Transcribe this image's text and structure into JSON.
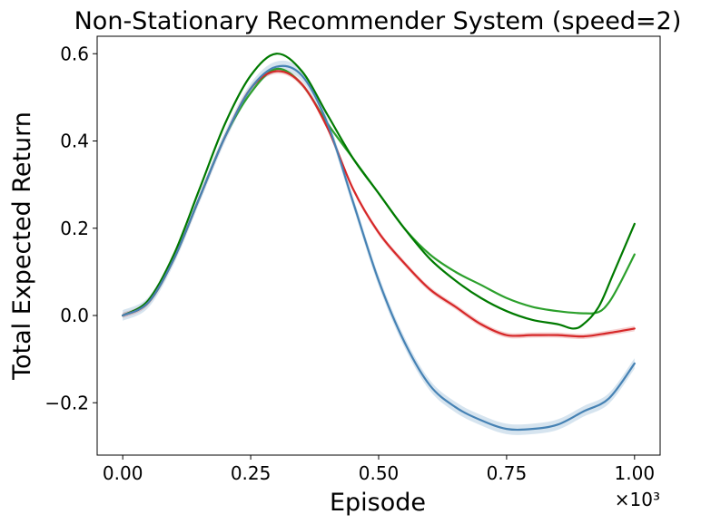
{
  "chart_data": {
    "type": "line",
    "title": "Non-Stationary Recommender System (speed=2)",
    "xlabel": "Episode",
    "ylabel": "Total Expected Return",
    "x_multiplier_label": "×10³",
    "xlim": [
      -0.05,
      1.05
    ],
    "ylim": [
      -0.32,
      0.64
    ],
    "x_ticks": [
      0.0,
      0.25,
      0.5,
      0.75,
      1.0
    ],
    "x_tick_labels": [
      "0.00",
      "0.25",
      "0.50",
      "0.75",
      "1.00"
    ],
    "y_ticks": [
      -0.2,
      0.0,
      0.2,
      0.4,
      0.6
    ],
    "y_tick_labels": [
      "−0.2",
      "0.0",
      "0.2",
      "0.4",
      "0.6"
    ],
    "grid": false,
    "legend": "none",
    "series": [
      {
        "color": "#2ca02c",
        "x": [
          0.0,
          0.05,
          0.1,
          0.15,
          0.2,
          0.25,
          0.3,
          0.35,
          0.4,
          0.45,
          0.5,
          0.55,
          0.6,
          0.65,
          0.7,
          0.75,
          0.8,
          0.85,
          0.9,
          0.93,
          0.95,
          0.97,
          1.0
        ],
        "y": [
          0.0,
          0.03,
          0.13,
          0.27,
          0.41,
          0.51,
          0.565,
          0.53,
          0.44,
          0.36,
          0.28,
          0.2,
          0.14,
          0.1,
          0.07,
          0.04,
          0.02,
          0.01,
          0.005,
          0.008,
          0.03,
          0.07,
          0.14
        ],
        "band": 0.0
      },
      {
        "color": "#007a00",
        "x": [
          0.0,
          0.05,
          0.1,
          0.15,
          0.2,
          0.25,
          0.3,
          0.35,
          0.4,
          0.45,
          0.5,
          0.55,
          0.6,
          0.65,
          0.7,
          0.75,
          0.8,
          0.85,
          0.88,
          0.9,
          0.93,
          0.96,
          1.0
        ],
        "y": [
          0.0,
          0.035,
          0.14,
          0.29,
          0.44,
          0.55,
          0.6,
          0.56,
          0.46,
          0.36,
          0.28,
          0.2,
          0.13,
          0.08,
          0.04,
          0.01,
          -0.01,
          -0.02,
          -0.03,
          -0.02,
          0.02,
          0.1,
          0.21
        ],
        "band": 0.0
      },
      {
        "color": "#d62728",
        "x": [
          0.0,
          0.05,
          0.1,
          0.15,
          0.2,
          0.25,
          0.3,
          0.35,
          0.4,
          0.45,
          0.5,
          0.55,
          0.6,
          0.65,
          0.7,
          0.75,
          0.8,
          0.85,
          0.9,
          0.95,
          1.0
        ],
        "y": [
          0.0,
          0.03,
          0.13,
          0.27,
          0.41,
          0.52,
          0.56,
          0.53,
          0.43,
          0.29,
          0.19,
          0.12,
          0.06,
          0.02,
          -0.02,
          -0.045,
          -0.045,
          -0.045,
          -0.048,
          -0.04,
          -0.03
        ],
        "band": 0.006
      },
      {
        "color": "#4682b4",
        "x": [
          0.0,
          0.05,
          0.1,
          0.15,
          0.2,
          0.25,
          0.3,
          0.35,
          0.4,
          0.45,
          0.5,
          0.55,
          0.6,
          0.65,
          0.7,
          0.75,
          0.8,
          0.85,
          0.9,
          0.95,
          1.0
        ],
        "y": [
          0.0,
          0.03,
          0.13,
          0.27,
          0.41,
          0.52,
          0.57,
          0.55,
          0.44,
          0.26,
          0.08,
          -0.06,
          -0.16,
          -0.21,
          -0.24,
          -0.26,
          -0.26,
          -0.25,
          -0.22,
          -0.19,
          -0.11
        ],
        "band": 0.012
      }
    ]
  }
}
